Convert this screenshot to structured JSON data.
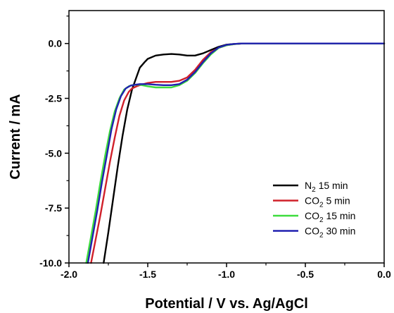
{
  "chart_data": {
    "type": "line",
    "title": "",
    "xlabel": "Potential / V vs. Ag/AgCl",
    "ylabel": "Current / mA",
    "xlim": [
      -2.0,
      0.0
    ],
    "ylim": [
      -10.0,
      1.5
    ],
    "xticks": [
      -2.0,
      -1.5,
      -1.0,
      -0.5,
      0.0
    ],
    "xtick_labels": [
      "-2.0",
      "-1.5",
      "-1.0",
      "-0.5",
      "0.0"
    ],
    "yticks": [
      0.0,
      -2.5,
      -5.0,
      -7.5,
      -10.0
    ],
    "ytick_labels": [
      "0.0",
      "-2.5",
      "-5.0",
      "-7.5",
      "-10.0"
    ],
    "grid": false,
    "legend_position": "bottom-right",
    "series": [
      {
        "name": "N2 15 min",
        "legend": {
          "base": "N",
          "sub": "2",
          "rest": " 15 min"
        },
        "color": "#000000",
        "x": [
          -1.78,
          -1.75,
          -1.72,
          -1.69,
          -1.66,
          -1.63,
          -1.6,
          -1.57,
          -1.55,
          -1.52,
          -1.5,
          -1.45,
          -1.4,
          -1.35,
          -1.3,
          -1.25,
          -1.2,
          -1.15,
          -1.1,
          -1.05,
          -1.0,
          -0.95,
          -0.9,
          -0.8,
          -0.7,
          -0.6,
          -0.5,
          -0.4,
          -0.3,
          -0.2,
          -0.1,
          0.0
        ],
        "y": [
          -10.0,
          -8.6,
          -7.1,
          -5.6,
          -4.2,
          -3.0,
          -2.1,
          -1.5,
          -1.1,
          -0.85,
          -0.7,
          -0.55,
          -0.5,
          -0.48,
          -0.5,
          -0.55,
          -0.55,
          -0.45,
          -0.3,
          -0.15,
          -0.05,
          -0.02,
          0.0,
          0.0,
          0.0,
          0.0,
          0.0,
          0.0,
          0.0,
          0.0,
          0.0,
          0.0
        ]
      },
      {
        "name": "CO2 5 min",
        "legend": {
          "base": "CO",
          "sub": "2",
          "rest": " 5 min"
        },
        "color": "#d0202a",
        "x": [
          -1.86,
          -1.83,
          -1.8,
          -1.77,
          -1.74,
          -1.71,
          -1.68,
          -1.65,
          -1.62,
          -1.6,
          -1.57,
          -1.55,
          -1.5,
          -1.45,
          -1.4,
          -1.35,
          -1.3,
          -1.25,
          -1.2,
          -1.15,
          -1.1,
          -1.05,
          -1.0,
          -0.95,
          -0.9,
          -0.8,
          -0.7,
          -0.6,
          -0.5,
          -0.4,
          -0.3,
          -0.2,
          -0.1,
          0.0
        ],
        "y": [
          -10.0,
          -8.9,
          -7.8,
          -6.6,
          -5.4,
          -4.3,
          -3.3,
          -2.6,
          -2.2,
          -2.05,
          -1.95,
          -1.9,
          -1.8,
          -1.75,
          -1.75,
          -1.75,
          -1.7,
          -1.55,
          -1.2,
          -0.75,
          -0.4,
          -0.2,
          -0.08,
          -0.03,
          0.0,
          0.0,
          0.0,
          0.0,
          0.0,
          0.0,
          0.0,
          0.0,
          0.0,
          0.0
        ]
      },
      {
        "name": "CO2 15 min",
        "legend": {
          "base": "CO",
          "sub": "2",
          "rest": " 15 min"
        },
        "color": "#3ddc3d",
        "x": [
          -1.89,
          -1.86,
          -1.83,
          -1.8,
          -1.77,
          -1.74,
          -1.71,
          -1.68,
          -1.65,
          -1.62,
          -1.6,
          -1.57,
          -1.55,
          -1.5,
          -1.45,
          -1.4,
          -1.35,
          -1.3,
          -1.25,
          -1.2,
          -1.15,
          -1.1,
          -1.05,
          -1.0,
          -0.95,
          -0.9,
          -0.8,
          -0.7,
          -0.6,
          -0.5,
          -0.4,
          -0.3,
          -0.2,
          -0.1,
          0.0
        ],
        "y": [
          -10.0,
          -8.8,
          -7.6,
          -6.3,
          -5.1,
          -4.0,
          -3.1,
          -2.5,
          -2.1,
          -1.95,
          -1.9,
          -1.88,
          -1.88,
          -1.95,
          -2.0,
          -2.0,
          -2.0,
          -1.9,
          -1.7,
          -1.35,
          -0.9,
          -0.5,
          -0.2,
          -0.08,
          -0.03,
          0.0,
          0.0,
          0.0,
          0.0,
          0.0,
          0.0,
          0.0,
          0.0,
          0.0,
          0.0
        ]
      },
      {
        "name": "CO2 30 min",
        "legend": {
          "base": "CO",
          "sub": "2",
          "rest": " 30 min"
        },
        "color": "#2020b0",
        "x": [
          -1.88,
          -1.85,
          -1.82,
          -1.79,
          -1.76,
          -1.73,
          -1.7,
          -1.67,
          -1.64,
          -1.61,
          -1.58,
          -1.55,
          -1.5,
          -1.45,
          -1.4,
          -1.35,
          -1.3,
          -1.25,
          -1.2,
          -1.15,
          -1.1,
          -1.05,
          -1.0,
          -0.95,
          -0.9,
          -0.8,
          -0.7,
          -0.6,
          -0.5,
          -0.4,
          -0.3,
          -0.2,
          -0.1,
          0.0
        ],
        "y": [
          -10.0,
          -8.8,
          -7.6,
          -6.3,
          -5.1,
          -3.9,
          -3.0,
          -2.4,
          -2.05,
          -1.92,
          -1.88,
          -1.85,
          -1.85,
          -1.88,
          -1.9,
          -1.9,
          -1.85,
          -1.65,
          -1.3,
          -0.85,
          -0.45,
          -0.18,
          -0.06,
          -0.02,
          0.0,
          0.0,
          0.0,
          0.0,
          0.0,
          0.0,
          0.0,
          0.0,
          0.0,
          0.0
        ]
      }
    ]
  }
}
